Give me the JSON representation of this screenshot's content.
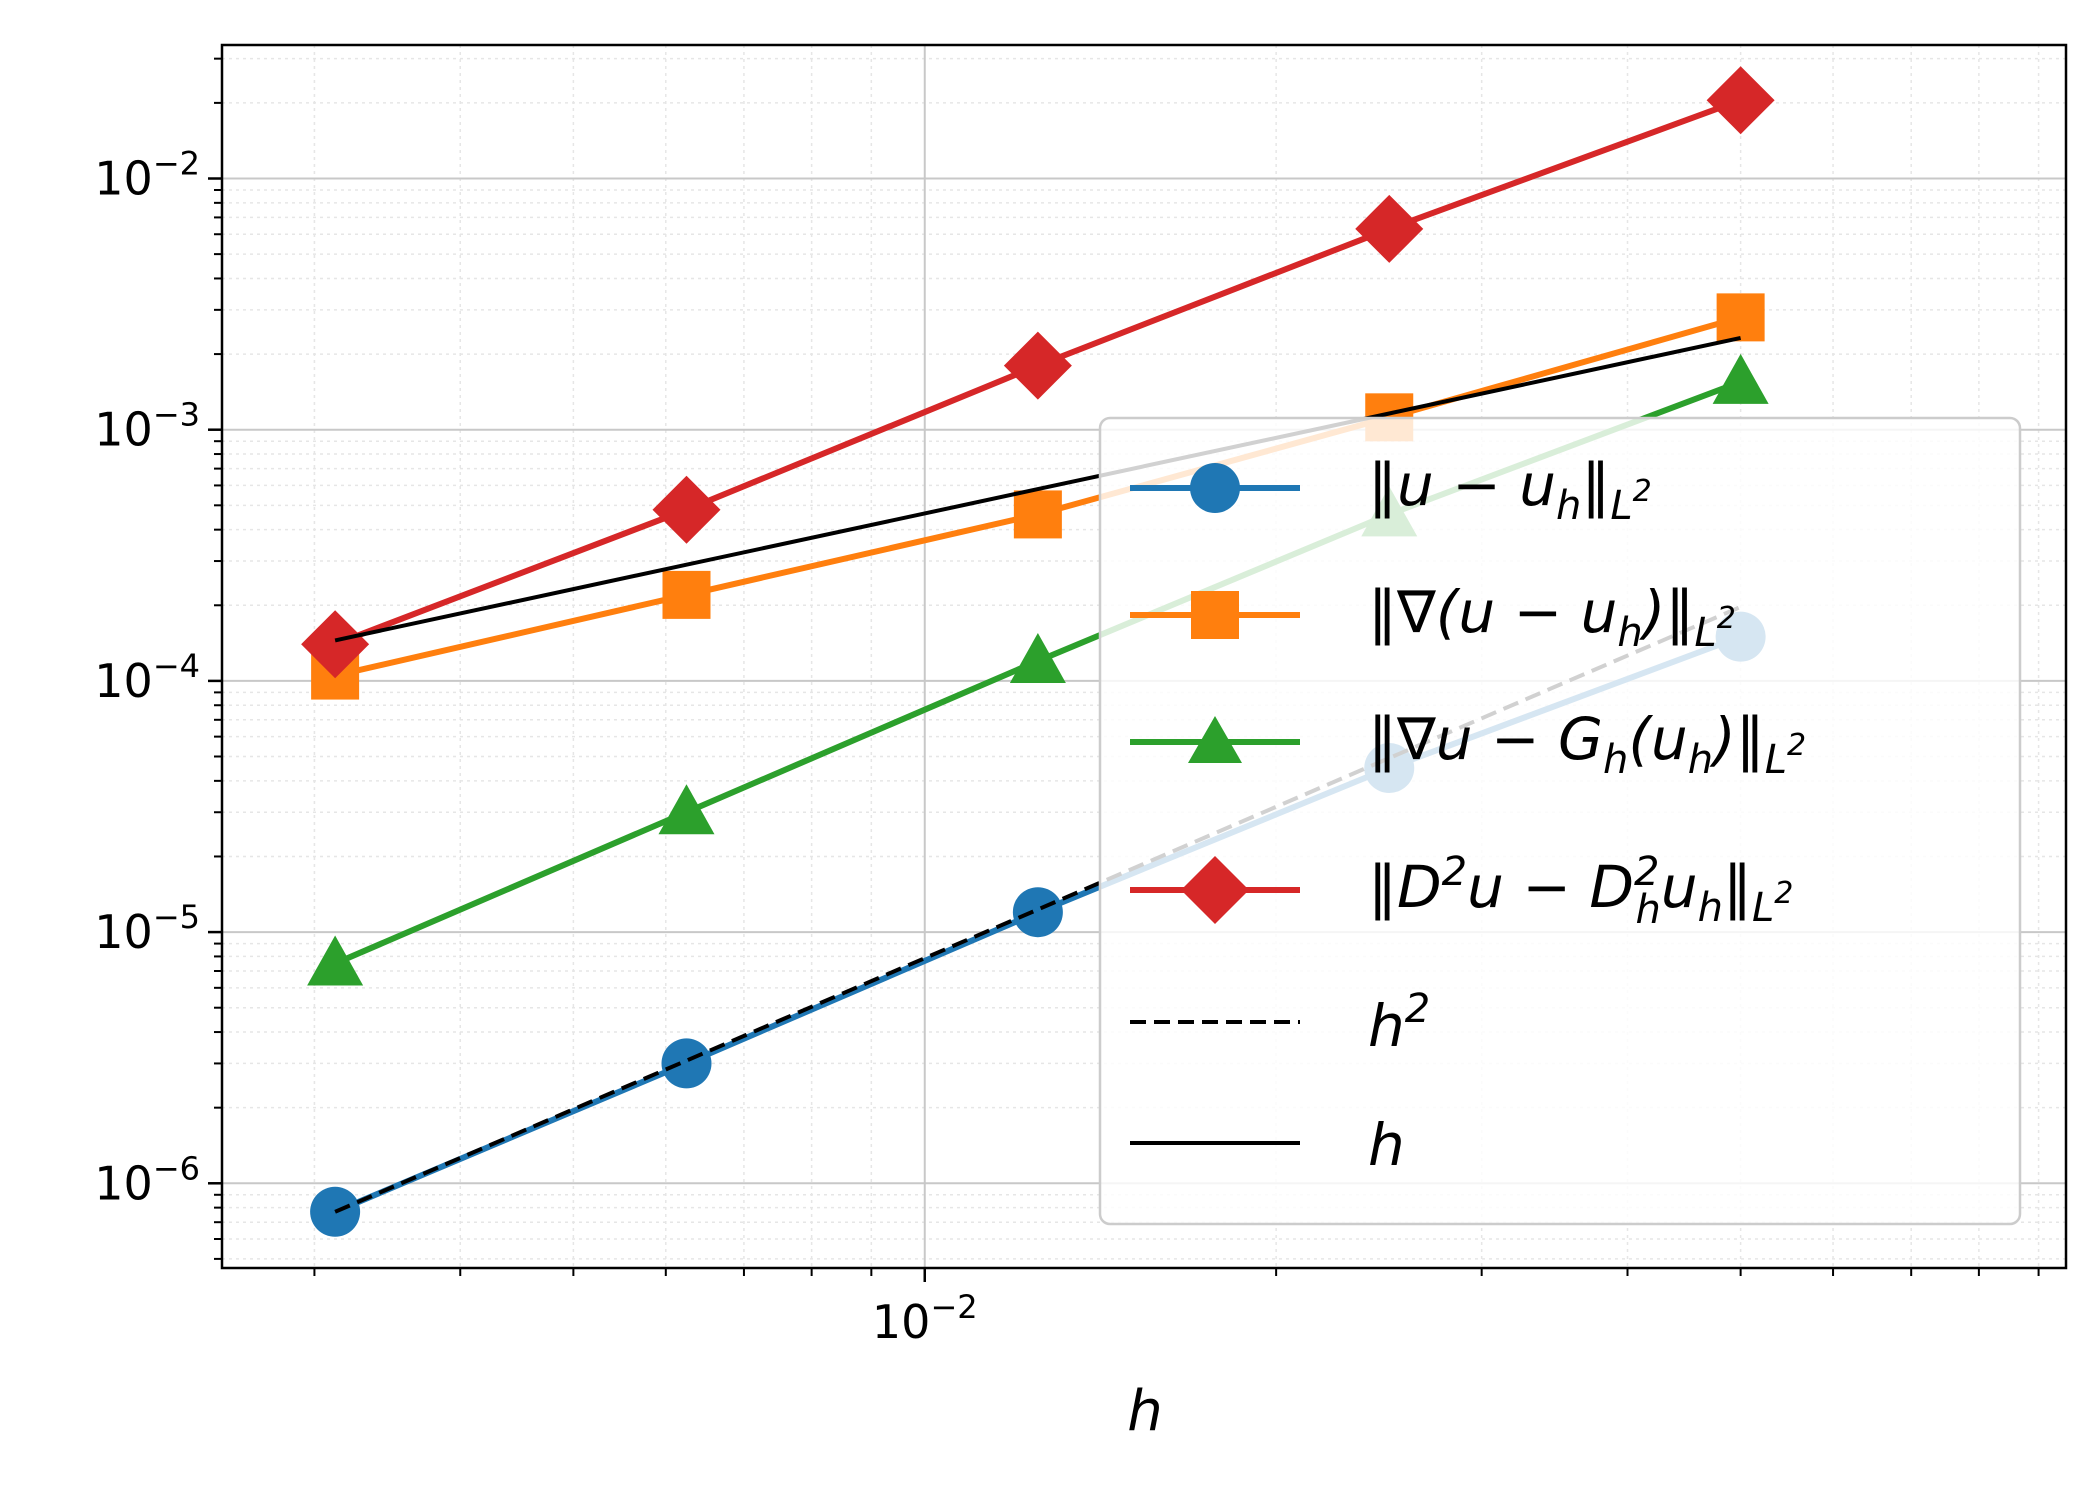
{
  "colors": {
    "blue": "#1f77b4",
    "orange": "#ff7f0e",
    "green": "#2ca02c",
    "red": "#d62728",
    "black": "#000000",
    "grid_major": "#c8c8c8",
    "grid_minor": "#e6e6e6"
  },
  "chart_data": {
    "type": "line",
    "xscale": "log",
    "yscale": "log",
    "xlabel": "h",
    "ylabel": "",
    "xlim": [
      0.0025,
      0.095
    ],
    "ylim": [
      4.6e-07,
      0.034
    ],
    "x_ticks": [
      {
        "base": "10",
        "exp": "−2",
        "value": 0.01
      }
    ],
    "y_ticks": [
      {
        "base": "10",
        "exp": "−6",
        "value": 1e-06
      },
      {
        "base": "10",
        "exp": "−5",
        "value": 1e-05
      },
      {
        "base": "10",
        "exp": "−4",
        "value": 0.0001
      },
      {
        "base": "10",
        "exp": "−3",
        "value": 0.001
      },
      {
        "base": "10",
        "exp": "−2",
        "value": 0.01
      }
    ],
    "grid": true,
    "legend_position": "lower-right",
    "x": [
      0.003125,
      0.00625,
      0.0125,
      0.025,
      0.05
    ],
    "series": [
      {
        "key": "l2",
        "name": "‖u − u_h‖_{L²}",
        "color": "#1f77b4",
        "marker": "circle",
        "values": [
          7.7e-07,
          3e-06,
          1.2e-05,
          4.5e-05,
          0.00015
        ]
      },
      {
        "key": "grad",
        "name": "‖∇(u − u_h)‖_{L²}",
        "color": "#ff7f0e",
        "marker": "square",
        "values": [
          0.000105,
          0.00022,
          0.00046,
          0.00112,
          0.0028
        ]
      },
      {
        "key": "recov",
        "name": "‖∇u − G_h(u_h)‖_{L²}",
        "color": "#2ca02c",
        "marker": "triangle",
        "values": [
          7.5e-06,
          3e-05,
          0.00012,
          0.00046,
          0.00155
        ]
      },
      {
        "key": "hess",
        "name": "‖D²u − D²_h u_h‖_{L²}",
        "color": "#d62728",
        "marker": "diamond",
        "values": [
          0.00014,
          0.00048,
          0.0018,
          0.0063,
          0.0205
        ]
      },
      {
        "key": "h2",
        "name": "h²",
        "color": "#000000",
        "marker": "none",
        "dash": "dashed",
        "values": [
          7.7e-07,
          3.08e-06,
          1.23e-05,
          4.93e-05,
          0.000197
        ]
      },
      {
        "key": "h1",
        "name": "h",
        "color": "#000000",
        "marker": "none",
        "dash": "solid",
        "values": [
          0.000145,
          0.00029,
          0.00058,
          0.00116,
          0.00232
        ]
      }
    ]
  }
}
